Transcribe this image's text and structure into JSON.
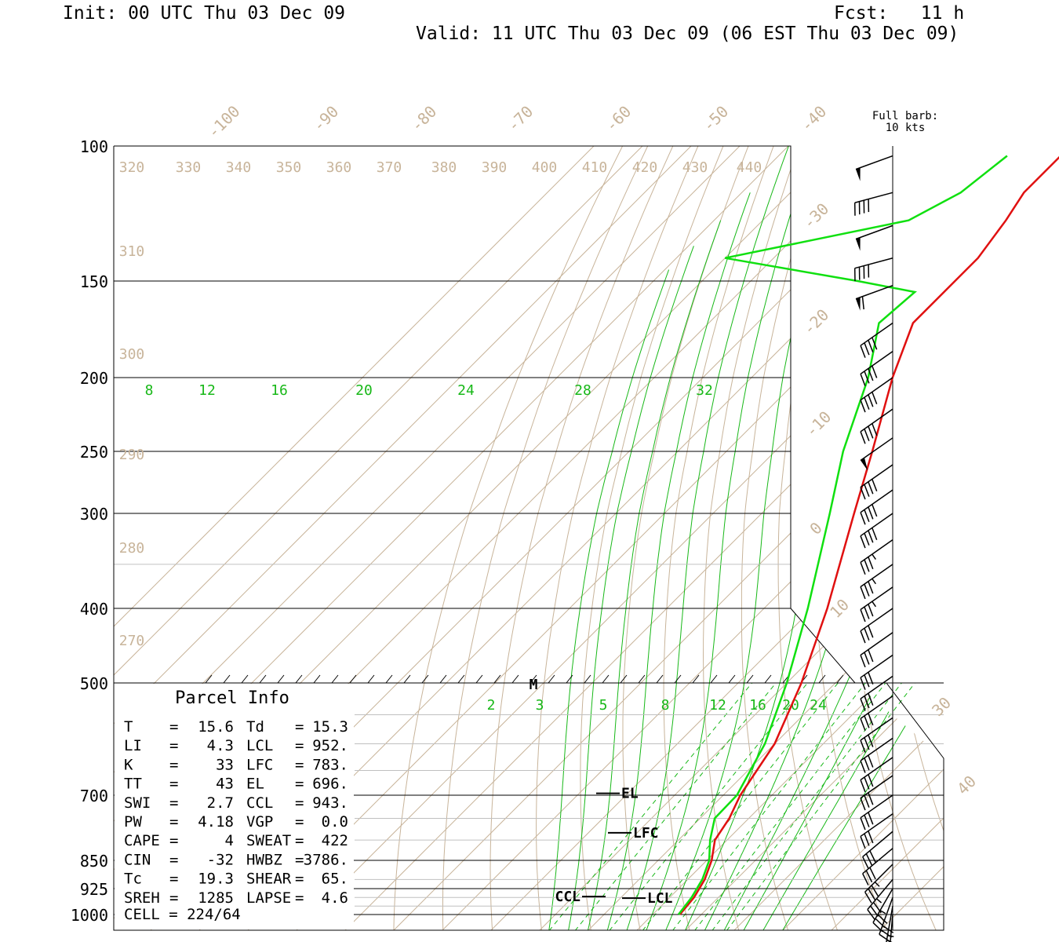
{
  "header": {
    "init": "Init: 00 UTC Thu 03 Dec 09",
    "fcst": "Fcst:   11 h",
    "valid": "Valid: 11 UTC Thu 03 Dec 09 (06 EST Thu 03 Dec 09)"
  },
  "colors": {
    "temperature": "#e01010",
    "dewpoint": "#10e010",
    "isotherm": "#c8b49a",
    "mixing_ratio": "#18b818",
    "isobar": "#000000",
    "frame": "#000000"
  },
  "chart_data": {
    "type": "skew-t log-p sounding",
    "pressure_levels": [
      "100",
      "150",
      "200",
      "250",
      "300",
      "400",
      "500",
      "700",
      "850",
      "925",
      "1000"
    ],
    "isotherm_labels_upper": [
      "-100",
      "-90",
      "-80",
      "-70",
      "-60",
      "-50",
      "-40",
      "-30",
      "-20",
      "-10",
      "0",
      "10",
      "30",
      "40"
    ],
    "theta_labels_top": [
      "320",
      "330",
      "340",
      "350",
      "360",
      "370",
      "380",
      "390",
      "400",
      "410",
      "420",
      "430",
      "440"
    ],
    "theta_labels_left": [
      "310",
      "300",
      "290",
      "280",
      "270"
    ],
    "mixing_ratio_labels_upper": [
      "8",
      "12",
      "16",
      "20",
      "24",
      "28",
      "32"
    ],
    "mixing_ratio_labels_lower": [
      "2",
      "3",
      "5",
      "8",
      "12",
      "16",
      "20",
      "24"
    ],
    "temperature_profile": [
      {
        "p": 1000,
        "t": 15.6
      },
      {
        "p": 950,
        "t": 15.0
      },
      {
        "p": 900,
        "t": 13.5
      },
      {
        "p": 850,
        "t": 11.0
      },
      {
        "p": 800,
        "t": 7.5
      },
      {
        "p": 750,
        "t": 6.0
      },
      {
        "p": 700,
        "t": 3.5
      },
      {
        "p": 600,
        "t": 0.0
      },
      {
        "p": 500,
        "t": -7.0
      },
      {
        "p": 400,
        "t": -17.0
      },
      {
        "p": 300,
        "t": -31.0
      },
      {
        "p": 250,
        "t": -40.0
      },
      {
        "p": 200,
        "t": -51.0
      },
      {
        "p": 170,
        "t": -58.0
      },
      {
        "p": 155,
        "t": -58.0
      },
      {
        "p": 140,
        "t": -58.0
      },
      {
        "p": 125,
        "t": -60.0
      },
      {
        "p": 115,
        "t": -62.0
      },
      {
        "p": 103,
        "t": -62.0
      }
    ],
    "dewpoint_profile": [
      {
        "p": 1000,
        "t": 15.3
      },
      {
        "p": 950,
        "t": 14.5
      },
      {
        "p": 900,
        "t": 13.0
      },
      {
        "p": 850,
        "t": 10.5
      },
      {
        "p": 800,
        "t": 6.5
      },
      {
        "p": 750,
        "t": 3.0
      },
      {
        "p": 700,
        "t": 2.8
      },
      {
        "p": 600,
        "t": -2.0
      },
      {
        "p": 500,
        "t": -10.0
      },
      {
        "p": 400,
        "t": -21.0
      },
      {
        "p": 300,
        "t": -36.0
      },
      {
        "p": 250,
        "t": -46.0
      },
      {
        "p": 200,
        "t": -56.0
      },
      {
        "p": 170,
        "t": -65.0
      },
      {
        "p": 155,
        "t": -64.0
      },
      {
        "p": 150,
        "t": -78.0
      },
      {
        "p": 140,
        "t": -110.0
      },
      {
        "p": 125,
        "t": -80.0
      },
      {
        "p": 115,
        "t": -75.0
      },
      {
        "p": 103,
        "t": -73.0
      }
    ],
    "level_markers": [
      {
        "label": "EL",
        "p": 696
      },
      {
        "label": "LFC",
        "p": 783
      },
      {
        "label": "CCL",
        "p": 943
      },
      {
        "label": "LCL",
        "p": 952
      },
      {
        "label": "M",
        "p": 500
      }
    ],
    "wind_barbs": [
      {
        "p": 103,
        "dir": 250,
        "kt": 50
      },
      {
        "p": 115,
        "dir": 255,
        "kt": 40
      },
      {
        "p": 127,
        "dir": 250,
        "kt": 50
      },
      {
        "p": 140,
        "dir": 255,
        "kt": 40
      },
      {
        "p": 152,
        "dir": 250,
        "kt": 60
      },
      {
        "p": 170,
        "dir": 235,
        "kt": 40
      },
      {
        "p": 185,
        "dir": 235,
        "kt": 40
      },
      {
        "p": 200,
        "dir": 235,
        "kt": 40
      },
      {
        "p": 220,
        "dir": 235,
        "kt": 40
      },
      {
        "p": 240,
        "dir": 235,
        "kt": 50
      },
      {
        "p": 260,
        "dir": 235,
        "kt": 40
      },
      {
        "p": 280,
        "dir": 235,
        "kt": 40
      },
      {
        "p": 300,
        "dir": 235,
        "kt": 40
      },
      {
        "p": 325,
        "dir": 235,
        "kt": 35
      },
      {
        "p": 350,
        "dir": 235,
        "kt": 35
      },
      {
        "p": 375,
        "dir": 235,
        "kt": 35
      },
      {
        "p": 400,
        "dir": 235,
        "kt": 30
      },
      {
        "p": 430,
        "dir": 235,
        "kt": 30
      },
      {
        "p": 460,
        "dir": 235,
        "kt": 30
      },
      {
        "p": 490,
        "dir": 235,
        "kt": 30
      },
      {
        "p": 520,
        "dir": 235,
        "kt": 30
      },
      {
        "p": 555,
        "dir": 235,
        "kt": 30
      },
      {
        "p": 590,
        "dir": 235,
        "kt": 30
      },
      {
        "p": 625,
        "dir": 235,
        "kt": 30
      },
      {
        "p": 660,
        "dir": 235,
        "kt": 30
      },
      {
        "p": 700,
        "dir": 235,
        "kt": 30
      },
      {
        "p": 740,
        "dir": 235,
        "kt": 30
      },
      {
        "p": 780,
        "dir": 230,
        "kt": 30
      },
      {
        "p": 820,
        "dir": 230,
        "kt": 30
      },
      {
        "p": 860,
        "dir": 225,
        "kt": 35
      },
      {
        "p": 900,
        "dir": 220,
        "kt": 35
      },
      {
        "p": 925,
        "dir": 210,
        "kt": 35
      },
      {
        "p": 950,
        "dir": 200,
        "kt": 30
      },
      {
        "p": 975,
        "dir": 190,
        "kt": 25
      },
      {
        "p": 1000,
        "dir": 185,
        "kt": 20
      }
    ],
    "barb_legend": [
      "Full barb:",
      "10 kts"
    ]
  },
  "parcel_info": {
    "title": "Parcel Info",
    "rows": [
      {
        "l1": "T",
        "v1": "15.6",
        "l2": "Td",
        "v2": "15.3"
      },
      {
        "l1": "LI",
        "v1": "4.3",
        "l2": "LCL",
        "v2": "952."
      },
      {
        "l1": "K",
        "v1": "33",
        "l2": "LFC",
        "v2": "783."
      },
      {
        "l1": "TT",
        "v1": "43",
        "l2": "EL",
        "v2": "696."
      },
      {
        "l1": "SWI",
        "v1": "2.7",
        "l2": "CCL",
        "v2": "943."
      },
      {
        "l1": "PW",
        "v1": "4.18",
        "l2": "VGP",
        "v2": "0.0"
      },
      {
        "l1": "CAPE",
        "v1": "4",
        "l2": "SWEAT",
        "v2": "422"
      },
      {
        "l1": "CIN",
        "v1": "-32",
        "l2": "HWBZ",
        "v2": "3786."
      },
      {
        "l1": "Tc",
        "v1": "19.3",
        "l2": "SHEAR",
        "v2": "65."
      },
      {
        "l1": "SREH",
        "v1": "1285",
        "l2": "LAPSE",
        "v2": "4.6"
      }
    ],
    "cell": "CELL = 224/64"
  }
}
